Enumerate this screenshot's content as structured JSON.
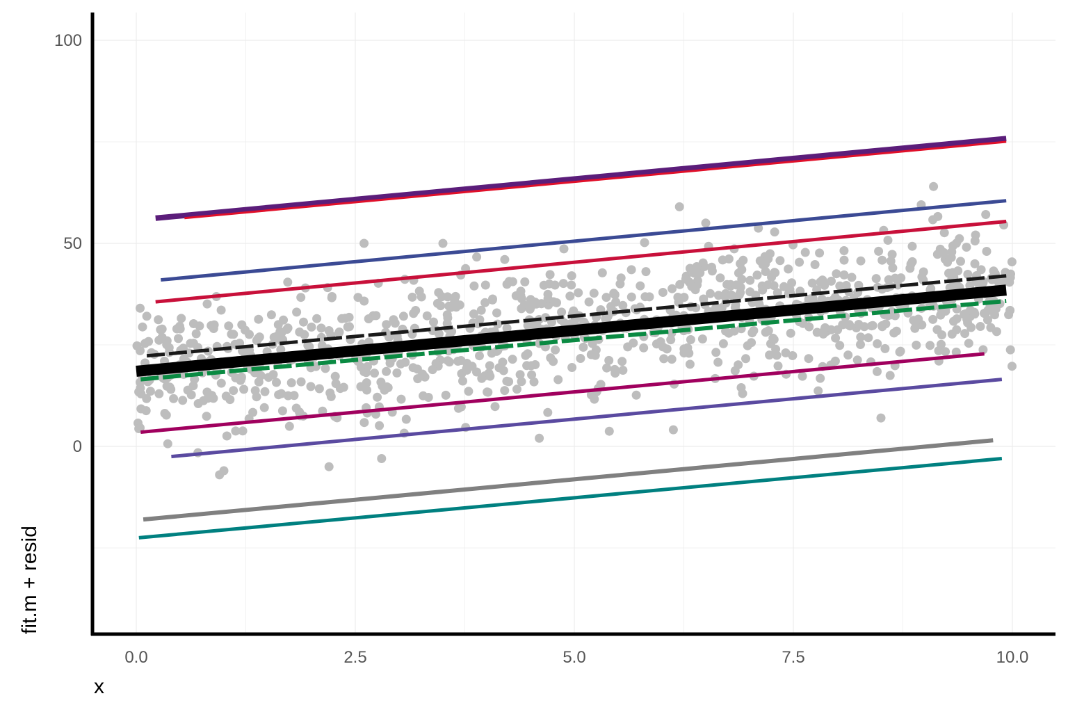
{
  "chart_data": {
    "type": "scatter",
    "title": "",
    "xlabel": "x",
    "ylabel": "fit.m + resid",
    "xlim": [
      -0.5,
      10.5
    ],
    "ylim": [
      -46,
      107
    ],
    "x_ticks": [
      "0.0",
      "2.5",
      "5.0",
      "7.5",
      "10.0"
    ],
    "x_tick_values": [
      0,
      2.5,
      5,
      7.5,
      10
    ],
    "y_ticks": [
      "0",
      "50",
      "100"
    ],
    "y_tick_values": [
      0,
      50,
      100
    ],
    "grid": true,
    "point_color": "#bdbdbd",
    "points": {
      "count": 1000,
      "x_range": [
        0,
        10
      ],
      "trend_intercept": 19,
      "trend_slope": 2,
      "outliers": [
        [
          0.95,
          -7
        ],
        [
          1.0,
          -6
        ],
        [
          2.2,
          -5
        ],
        [
          2.8,
          -3
        ],
        [
          4.6,
          2
        ],
        [
          6.2,
          59
        ],
        [
          6.5,
          55
        ],
        [
          9.1,
          64
        ],
        [
          3.5,
          50
        ],
        [
          2.6,
          50
        ],
        [
          8.5,
          7
        ]
      ]
    },
    "lines": [
      {
        "color": "#5b1d7a",
        "x": [
          0.22,
          9.93
        ],
        "y": [
          56.2,
          75.8
        ],
        "width": 8
      },
      {
        "color": "#e0102a",
        "x": [
          0.55,
          9.93
        ],
        "y": [
          56.2,
          75.0
        ],
        "width": 3
      },
      {
        "color": "#3b4a94",
        "x": [
          0.28,
          9.93
        ],
        "y": [
          41.0,
          60.5
        ],
        "width": 5
      },
      {
        "color": "#c8103a",
        "x": [
          0.22,
          9.93
        ],
        "y": [
          35.6,
          55.4
        ],
        "width": 5
      },
      {
        "color": "#1a1a1a",
        "x": [
          0.12,
          9.93
        ],
        "y": [
          22.3,
          42.0
        ],
        "width": 5,
        "dashed": true
      },
      {
        "color": "#0a8a42",
        "x": [
          0.05,
          9.93
        ],
        "y": [
          16.5,
          35.8
        ],
        "width": 6,
        "dashed": true
      },
      {
        "color": "#000000",
        "x": [
          0.0,
          9.93
        ],
        "y": [
          18.5,
          38.5
        ],
        "width": 16
      },
      {
        "color": "#a0005e",
        "x": [
          0.05,
          9.68
        ],
        "y": [
          3.5,
          22.8
        ],
        "width": 5
      },
      {
        "color": "#5a4aa0",
        "x": [
          0.4,
          9.88
        ],
        "y": [
          -2.5,
          16.5
        ],
        "width": 5
      },
      {
        "color": "#808080",
        "x": [
          0.08,
          9.78
        ],
        "y": [
          -18.0,
          1.5
        ],
        "width": 6
      },
      {
        "color": "#008080",
        "x": [
          0.03,
          9.88
        ],
        "y": [
          -22.5,
          -3.0
        ],
        "width": 5
      }
    ]
  }
}
